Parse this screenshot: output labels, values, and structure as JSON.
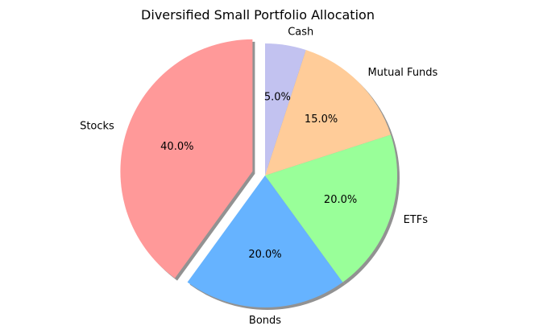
{
  "chart_data": {
    "type": "pie",
    "title": "Diversified Small Portfolio Allocation",
    "slices": [
      {
        "label": "Stocks",
        "value": 40.0,
        "pct_label": "40.0%",
        "color": "#ff9999",
        "exploded": true
      },
      {
        "label": "Bonds",
        "value": 20.0,
        "pct_label": "20.0%",
        "color": "#66b3ff",
        "exploded": false
      },
      {
        "label": "ETFs",
        "value": 20.0,
        "pct_label": "20.0%",
        "color": "#99ff99",
        "exploded": false
      },
      {
        "label": "Mutual Funds",
        "value": 15.0,
        "pct_label": "15.0%",
        "color": "#ffcc99",
        "exploded": false
      },
      {
        "label": "Cash",
        "value": 5.0,
        "pct_label": "5.0%",
        "color": "#c2c2f0",
        "exploded": false
      }
    ],
    "start_angle_deg": 90,
    "direction": "counterclockwise",
    "shadow": true,
    "legend": "none"
  }
}
